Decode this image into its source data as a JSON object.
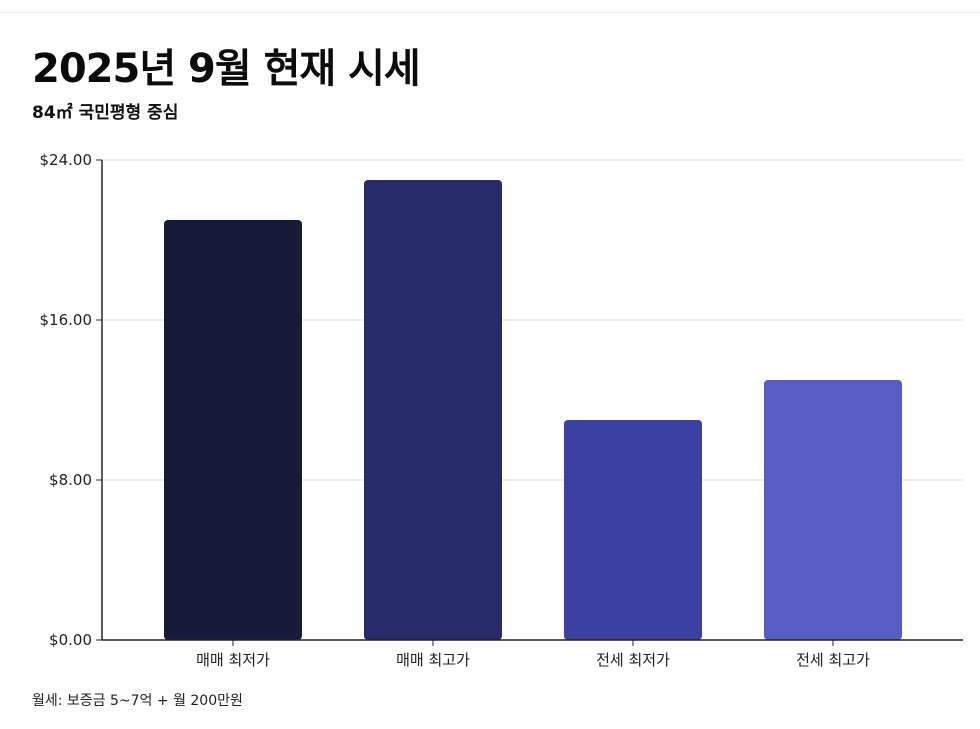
{
  "header": {
    "title": "2025년 9월 현재 시세",
    "subtitle": "84㎡ 국민평형 중심"
  },
  "footnote": "월세: 보증금 5~7억 + 월 200만원",
  "chart_data": {
    "type": "bar",
    "categories": [
      "매매 최저가",
      "매매 최고가",
      "전세 최저가",
      "전세 최고가"
    ],
    "values": [
      21,
      23,
      11,
      13
    ],
    "bar_colors": [
      "#181a3a",
      "#272b69",
      "#3b41a0",
      "#565ec4"
    ],
    "ylim": [
      0,
      24
    ],
    "yticks": [
      0,
      8,
      16,
      24
    ],
    "ytick_labels": [
      "$0.00",
      "$8.00",
      "$16.00",
      "$24.00"
    ],
    "grid": true,
    "title": "",
    "xlabel": "",
    "ylabel": ""
  }
}
